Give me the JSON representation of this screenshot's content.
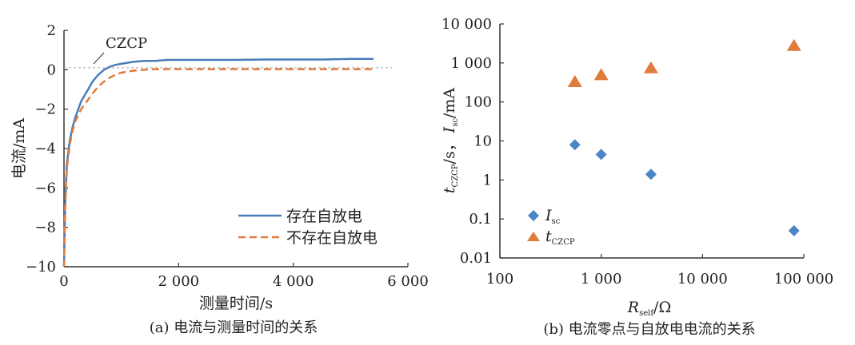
{
  "chart_data": [
    {
      "type": "line",
      "caption": "(a)  电流与测量时间的关系",
      "xlabel": "测量时间/s",
      "ylabel": "电流/mA",
      "xlim": [
        0,
        6000
      ],
      "ylim": [
        -10,
        2
      ],
      "xticks": [
        "0",
        "2 000",
        "4 000",
        "6 000"
      ],
      "yticks": [
        "2",
        "0",
        "−2",
        "−4",
        "−6",
        "−8",
        "−10"
      ],
      "annotation": "CZCP",
      "reference_line": {
        "y": 0.1,
        "style": "dashed",
        "color": "#aaaaaa"
      },
      "legend_position": "lower-right",
      "series": [
        {
          "name": "存在自放电",
          "style": "solid",
          "color": "#4a7db8",
          "x": [
            0,
            20,
            50,
            100,
            150,
            200,
            300,
            400,
            500,
            600,
            700,
            800,
            900,
            1000,
            1200,
            1400,
            1600,
            1800,
            2000,
            2500,
            3000,
            3500,
            4000,
            4500,
            5000,
            5400
          ],
          "y": [
            -10,
            -7,
            -4.8,
            -3.6,
            -2.9,
            -2.4,
            -1.6,
            -1.1,
            -0.6,
            -0.25,
            0.0,
            0.15,
            0.25,
            0.3,
            0.4,
            0.45,
            0.45,
            0.5,
            0.5,
            0.5,
            0.5,
            0.52,
            0.52,
            0.52,
            0.55,
            0.55
          ]
        },
        {
          "name": "不存在自放电",
          "style": "dashed",
          "color": "#e07b3c",
          "x": [
            0,
            20,
            50,
            100,
            150,
            200,
            300,
            400,
            500,
            600,
            700,
            800,
            900,
            1000,
            1200,
            1400,
            1600,
            1800,
            2000,
            2500,
            3000,
            3500,
            4000,
            4500,
            5000,
            5400
          ],
          "y": [
            -10,
            -7,
            -5,
            -3.8,
            -3.1,
            -2.6,
            -2.0,
            -1.6,
            -1.2,
            -0.85,
            -0.6,
            -0.4,
            -0.25,
            -0.15,
            -0.05,
            0.0,
            0.03,
            0.03,
            0.03,
            0.03,
            0.03,
            0.03,
            0.03,
            0.03,
            0.03,
            0.03
          ]
        }
      ]
    },
    {
      "type": "scatter",
      "caption": "(b)  电流零点与自放电电流的关系",
      "xlabel": {
        "main": "R",
        "sub": "self",
        "unit": "/Ω"
      },
      "ylabel": {
        "t": "t",
        "t_sub": "CZCP",
        "mid": "/s，",
        "i": "I",
        "i_sub": "sc",
        "unit": "/mA"
      },
      "xscale": "log",
      "yscale": "log",
      "xlim": [
        100,
        100000
      ],
      "ylim": [
        0.01,
        10000
      ],
      "xticks": [
        "100",
        "1 000",
        "10 000",
        "100 000"
      ],
      "yticks": [
        "10 000",
        "1 000",
        "100",
        "10",
        "1",
        "0.1",
        "0.01"
      ],
      "legend_position": "lower-left",
      "series": [
        {
          "name": "I",
          "name_sub": "sc",
          "marker": "diamond",
          "color": "#4a86c6",
          "x": [
            550,
            1000,
            3100,
            80000
          ],
          "y": [
            8,
            4.5,
            1.4,
            0.05
          ]
        },
        {
          "name": "t",
          "name_sub": "CZCP",
          "marker": "triangle",
          "color": "#e07b3c",
          "x": [
            550,
            1000,
            3100,
            80000
          ],
          "y": [
            320,
            480,
            720,
            2700
          ]
        }
      ]
    }
  ]
}
